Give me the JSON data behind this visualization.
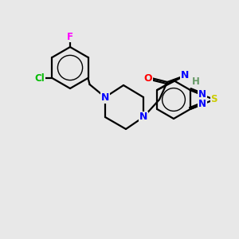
{
  "background_color": "#e8e8e8",
  "bond_color": "#000000",
  "atom_colors": {
    "N": "#0000ff",
    "O": "#ff0000",
    "S": "#cccc00",
    "Cl": "#00bb00",
    "F": "#ff00ff",
    "H": "#669966",
    "C": "#000000"
  },
  "figsize": [
    3.0,
    3.0
  ],
  "dpi": 100
}
